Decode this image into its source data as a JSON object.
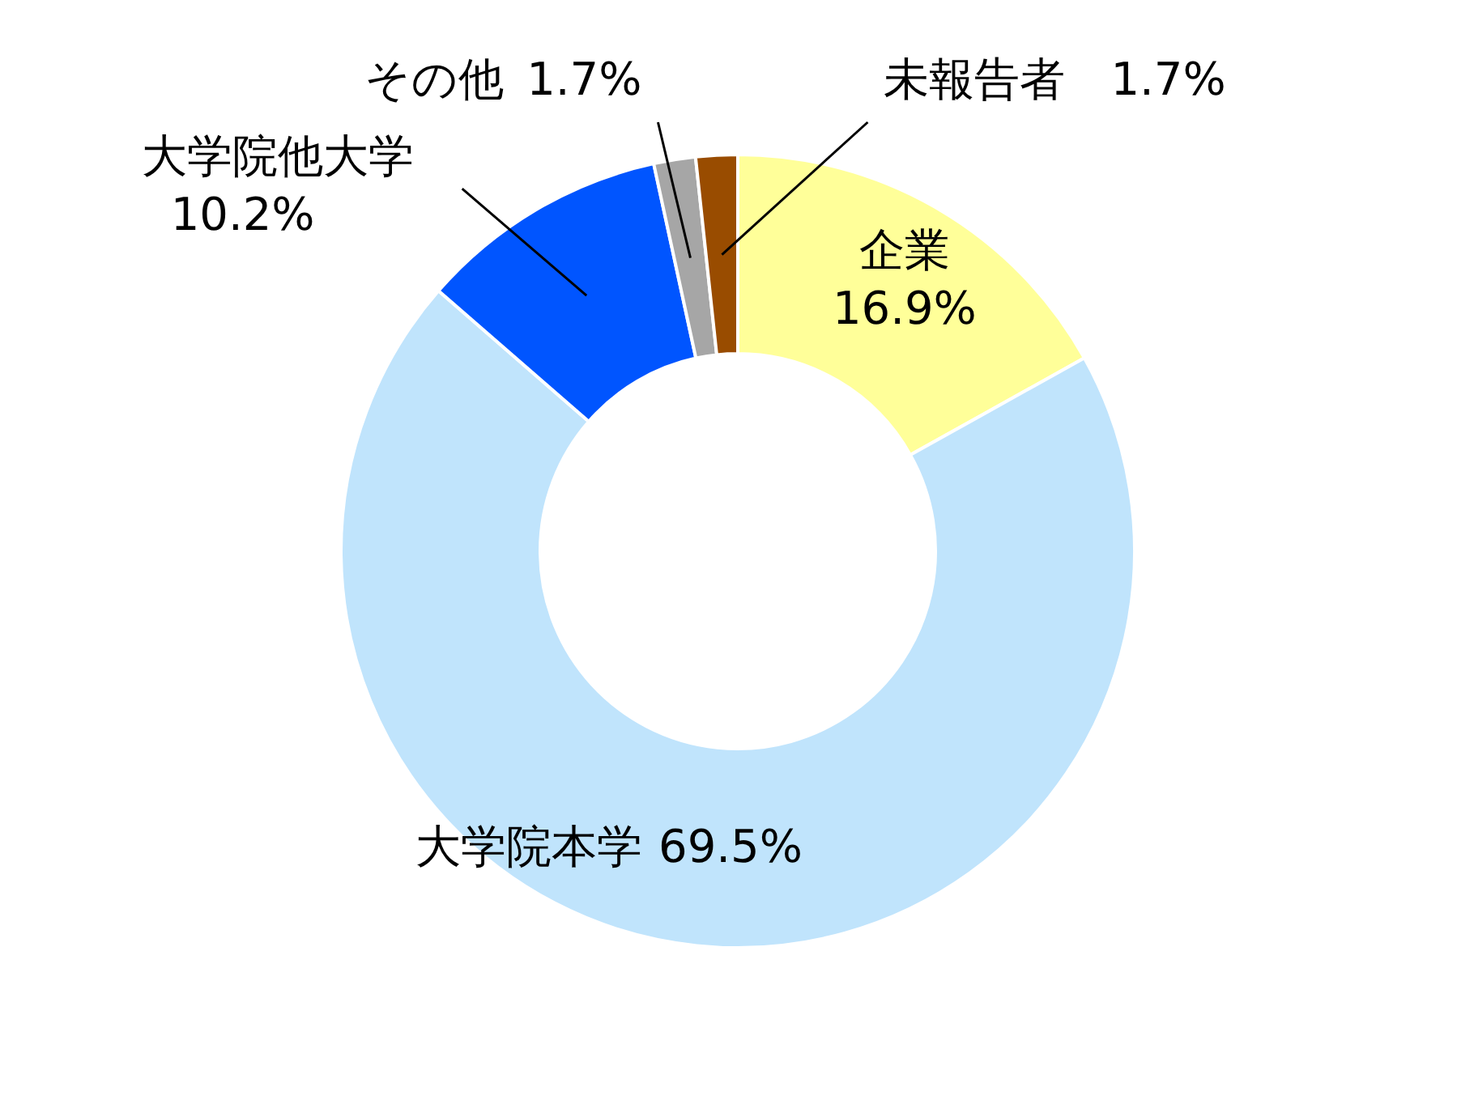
{
  "chart_data": {
    "type": "donut",
    "categories": [
      "企業",
      "大学院本学",
      "大学院他大学",
      "その他",
      "未報告者"
    ],
    "values": [
      16.9,
      69.5,
      10.2,
      1.7,
      1.7
    ],
    "colors": [
      "#ffff99",
      "#c0e4fc",
      "#0055ff",
      "#a6a6a6",
      "#994c00"
    ],
    "value_labels": [
      "16.9%",
      "69.5%",
      "10.2%",
      "1.7%",
      "1.7%"
    ]
  }
}
